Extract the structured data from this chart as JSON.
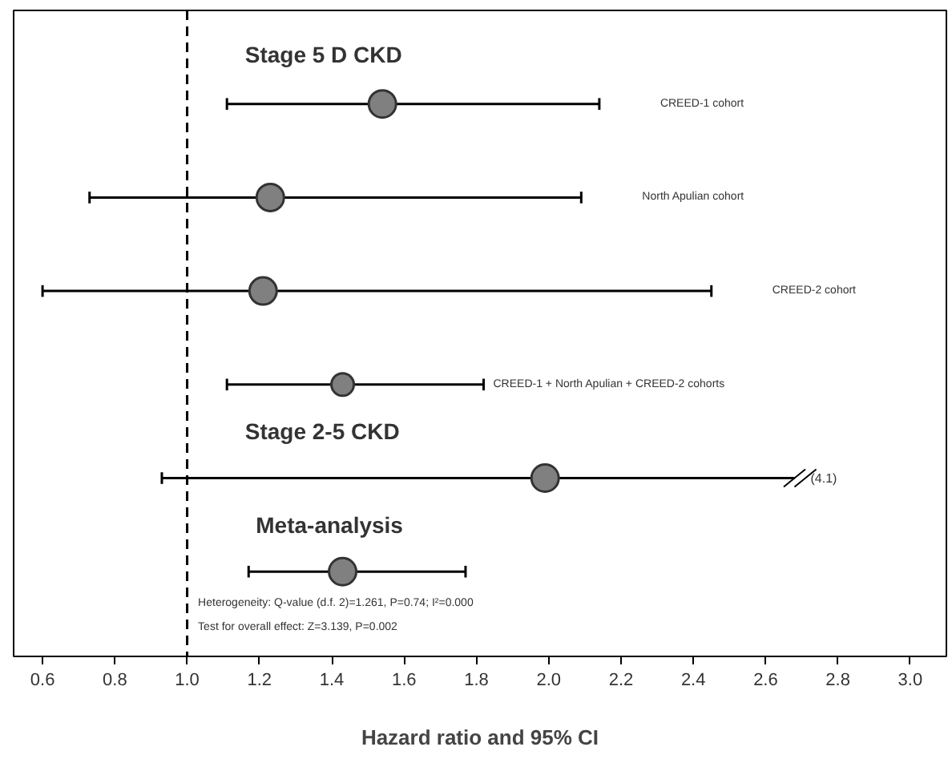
{
  "chart_data": {
    "type": "scatter",
    "orientation": "horizontal",
    "xlabel": "Hazard ratio and 95% CI",
    "categories": [
      "CREED-1  cohort",
      "North Apulian cohort",
      "CREED-2  cohort",
      "CREED-1  + North Apulian + CREED-2  cohorts",
      null,
      null
    ],
    "values": [
      1.54,
      1.23,
      1.21,
      1.43,
      1.99,
      1.43
    ],
    "errors": [
      [
        1.11,
        2.14
      ],
      [
        0.73,
        2.09
      ],
      [
        0.6,
        2.45
      ],
      [
        1.11,
        1.82
      ],
      [
        0.93,
        2.68
      ],
      [
        1.17,
        1.77
      ]
    ],
    "color": "#808080",
    "marker": "circle",
    "xlim": [
      0.52,
      3.1
    ],
    "xticks": [
      0.6,
      0.8,
      {
        "value": 1,
        "label": "1.0"
      },
      1.2,
      1.4,
      1.6,
      1.8,
      {
        "value": 2,
        "label": "2.0"
      },
      2.2,
      2.4,
      2.6,
      2.8,
      {
        "value": 3,
        "label": "3.0"
      }
    ],
    "ref_lines": [
      {
        "axis": "x",
        "value": 1.0,
        "label": null,
        "line_style": "dashed",
        "color": "#000000"
      }
    ],
    "annotations": [
      "Stage 5 D CKD",
      "Stage 2-5 CKD",
      "Meta-analysis",
      "(4.1)",
      "Heterogeneity: Q-value (d.f. 2)=1.261, P=0.74; I²=0.000",
      "Test for overall effect: Z=3.139, P=0.002"
    ]
  }
}
